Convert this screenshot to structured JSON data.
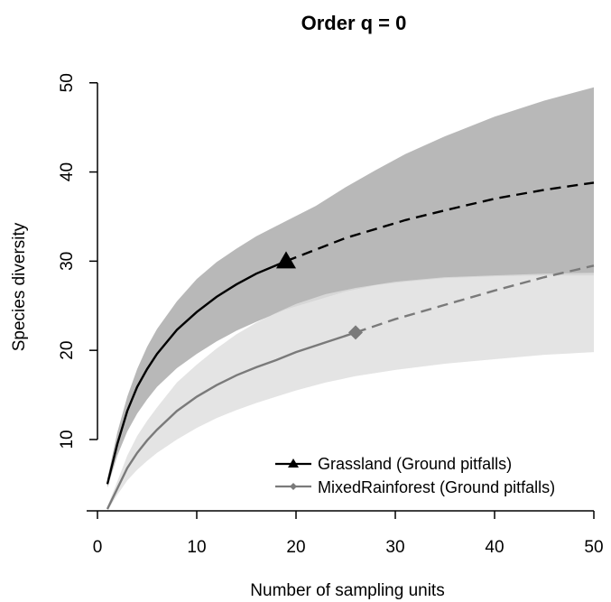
{
  "chart_data": {
    "type": "line",
    "title": "Order q = 0",
    "xlabel": "Number of sampling units",
    "ylabel": "Species diversity",
    "xlim": [
      0,
      50
    ],
    "ylim": [
      2,
      52
    ],
    "xticks": [
      0,
      10,
      20,
      30,
      40,
      50
    ],
    "yticks": [
      10,
      20,
      30,
      40,
      50
    ],
    "grid": false,
    "legend_position": "bottom-right",
    "series": [
      {
        "name": "Grassland (Ground pitfalls)",
        "color": "#000000",
        "band_color": "#a8a8a8",
        "marker": "triangle",
        "reference": {
          "x": 19,
          "y": 30
        },
        "x": [
          1,
          2,
          3,
          4,
          5,
          6,
          8,
          10,
          12,
          14,
          16,
          19,
          22,
          25,
          28,
          31,
          35,
          40,
          45,
          50
        ],
        "y": [
          5,
          9.5,
          13.2,
          15.9,
          17.9,
          19.6,
          22.3,
          24.3,
          26,
          27.4,
          28.6,
          30,
          31.3,
          32.6,
          33.6,
          34.6,
          35.7,
          37,
          38,
          38.8
        ],
        "lower": [
          4.6,
          8.2,
          10.9,
          12.9,
          14.5,
          15.9,
          18,
          19.6,
          21,
          22.2,
          23.2,
          24.6,
          25.6,
          26.6,
          27.3,
          27.7,
          28.1,
          28.3,
          28.4,
          28.4
        ],
        "upper": [
          5.6,
          10.8,
          14.8,
          17.9,
          20.4,
          22.4,
          25.5,
          28,
          29.9,
          31.4,
          32.8,
          34.5,
          36.2,
          38.3,
          40.2,
          42,
          44,
          46.2,
          48,
          49.5
        ]
      },
      {
        "name": "MixedRainforest (Ground pitfalls)",
        "color": "#7a7a7a",
        "band_color": "#dedede",
        "marker": "diamond",
        "reference": {
          "x": 26,
          "y": 22
        },
        "x": [
          1,
          2,
          3,
          4,
          5,
          6,
          8,
          10,
          12,
          14,
          16,
          18,
          20,
          23,
          26,
          30,
          35,
          40,
          45,
          50
        ],
        "y": [
          2.2,
          4.5,
          6.8,
          8.5,
          9.9,
          11.1,
          13.2,
          14.8,
          16.1,
          17.2,
          18.1,
          18.9,
          19.8,
          20.9,
          22,
          23.5,
          25.1,
          26.7,
          28.2,
          29.5
        ],
        "lower": [
          2,
          3.8,
          5.4,
          6.6,
          7.6,
          8.5,
          10,
          11.3,
          12.4,
          13.3,
          14.1,
          14.8,
          15.5,
          16.4,
          17.1,
          17.8,
          18.5,
          19,
          19.5,
          19.8
        ],
        "upper": [
          2.5,
          5.3,
          8.2,
          10.4,
          12.1,
          13.6,
          16.4,
          18.4,
          20.2,
          21.8,
          23.1,
          24.2,
          25.2,
          26.3,
          27,
          27.7,
          28.2,
          28.4,
          28.6,
          28.7
        ]
      }
    ]
  }
}
